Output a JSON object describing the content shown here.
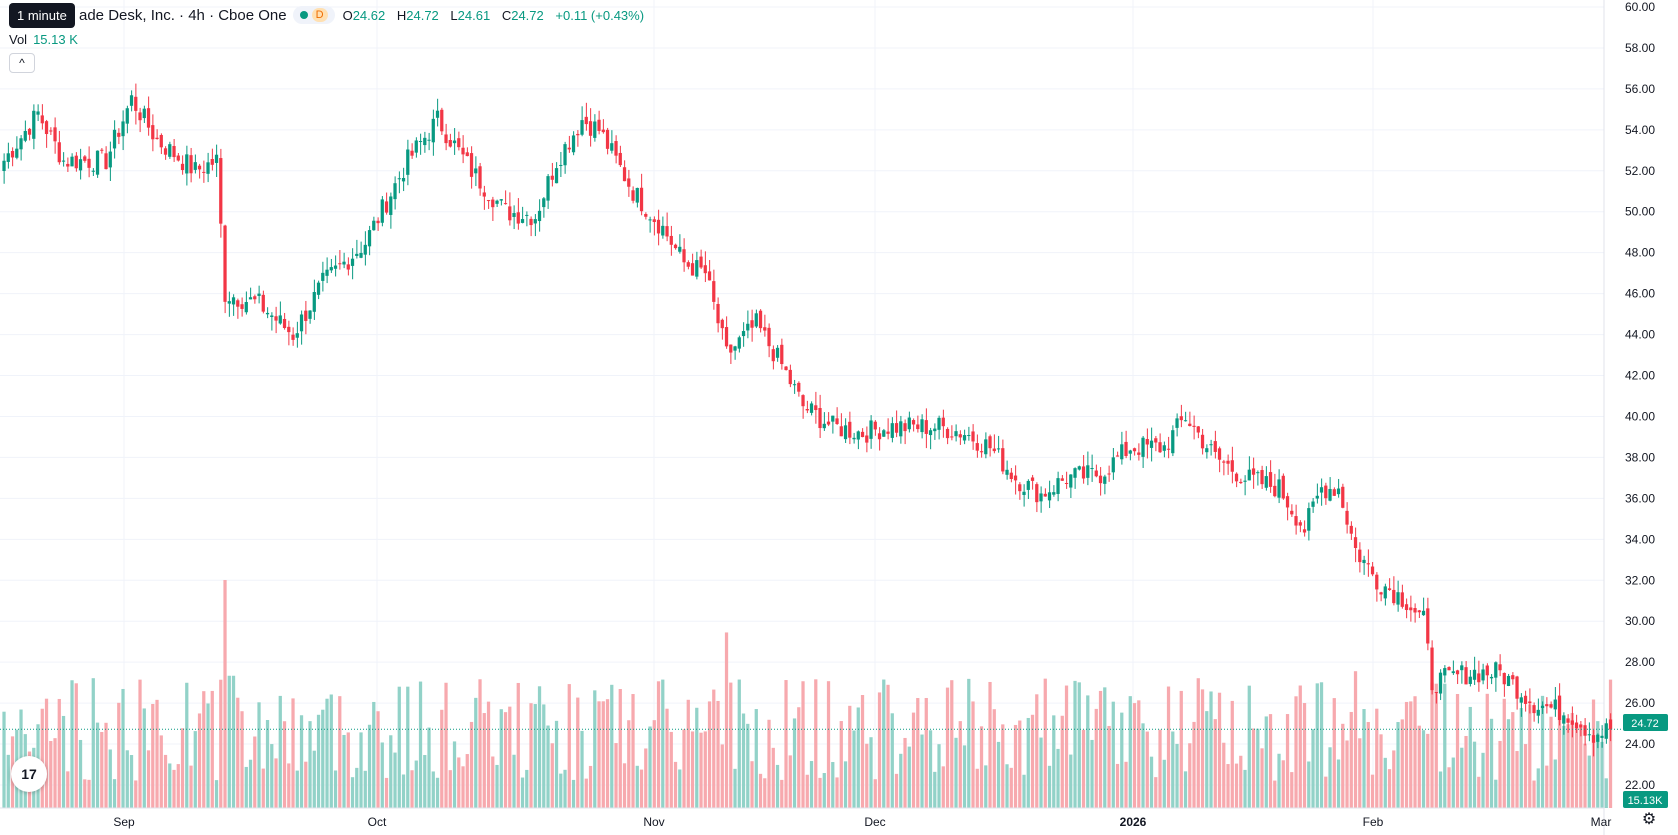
{
  "header": {
    "symbol_title": "ade Desk, Inc. · 4h · Cboe One",
    "interval_badge": "D",
    "ohlc": {
      "o_label": "O",
      "o": "24.62",
      "h_label": "H",
      "h": "24.72",
      "l_label": "L",
      "l": "24.61",
      "c_label": "C",
      "c": "24.72",
      "change": "+0.11 (+0.43%)"
    },
    "tooltip": "1 minute"
  },
  "volume": {
    "label": "Vol",
    "value": "15.13 K"
  },
  "collapse_glyph": "^",
  "logo_text": "17",
  "settings_glyph": "⚙",
  "colors": {
    "up": "#089981",
    "down": "#F23645",
    "up_vol": "#92D2C8",
    "down_vol": "#F7A9AE"
  },
  "chart_data": {
    "type": "candlestick",
    "price_axis": {
      "labels": [
        "60.00",
        "58.00",
        "56.00",
        "54.00",
        "52.00",
        "50.00",
        "48.00",
        "46.00",
        "44.00",
        "42.00",
        "40.00",
        "38.00",
        "36.00",
        "34.00",
        "32.00",
        "30.00",
        "28.00",
        "26.00",
        "24.00",
        "22.00"
      ],
      "ylim": [
        20.5,
        60.2
      ]
    },
    "time_axis": {
      "labels": [
        "Sep",
        "Oct",
        "Nov",
        "Dec",
        "2026",
        "Feb",
        "Mar"
      ]
    },
    "last_price_label": "24.72",
    "last_volume_label": "15.13K",
    "anchors": [
      {
        "x": 0,
        "close": 52.5
      },
      {
        "x": 8,
        "close": 54.8
      },
      {
        "x": 14,
        "close": 52.5
      },
      {
        "x": 24,
        "close": 52.5
      },
      {
        "x": 30,
        "close": 55.5
      },
      {
        "x": 36,
        "close": 53.5
      },
      {
        "x": 45,
        "close": 52.0
      },
      {
        "x": 50,
        "close": 52.5
      },
      {
        "x": 52,
        "close": 46.0
      },
      {
        "x": 60,
        "close": 45.5
      },
      {
        "x": 68,
        "close": 44.0
      },
      {
        "x": 75,
        "close": 46.5
      },
      {
        "x": 85,
        "close": 48.5
      },
      {
        "x": 95,
        "close": 52.5
      },
      {
        "x": 102,
        "close": 54.5
      },
      {
        "x": 110,
        "close": 52.0
      },
      {
        "x": 118,
        "close": 50.0
      },
      {
        "x": 125,
        "close": 49.8
      },
      {
        "x": 130,
        "close": 52.5
      },
      {
        "x": 136,
        "close": 54.5
      },
      {
        "x": 140,
        "close": 54.0
      },
      {
        "x": 148,
        "close": 51.0
      },
      {
        "x": 155,
        "close": 49.2
      },
      {
        "x": 160,
        "close": 47.5
      },
      {
        "x": 165,
        "close": 47.0
      },
      {
        "x": 170,
        "close": 43.0
      },
      {
        "x": 177,
        "close": 44.5
      },
      {
        "x": 183,
        "close": 42.5
      },
      {
        "x": 188,
        "close": 40.5
      },
      {
        "x": 195,
        "close": 39.5
      },
      {
        "x": 202,
        "close": 39.2
      },
      {
        "x": 208,
        "close": 39.5
      },
      {
        "x": 215,
        "close": 39.5
      },
      {
        "x": 220,
        "close": 39.5
      },
      {
        "x": 226,
        "close": 39.2
      },
      {
        "x": 232,
        "close": 38.5
      },
      {
        "x": 238,
        "close": 37.0
      },
      {
        "x": 244,
        "close": 36.2
      },
      {
        "x": 250,
        "close": 37.0
      },
      {
        "x": 258,
        "close": 37.2
      },
      {
        "x": 265,
        "close": 38.5
      },
      {
        "x": 273,
        "close": 38.5
      },
      {
        "x": 278,
        "close": 40.0
      },
      {
        "x": 285,
        "close": 38.0
      },
      {
        "x": 292,
        "close": 37.0
      },
      {
        "x": 300,
        "close": 36.5
      },
      {
        "x": 306,
        "close": 34.5
      },
      {
        "x": 310,
        "close": 36.5
      },
      {
        "x": 314,
        "close": 36.5
      },
      {
        "x": 318,
        "close": 33.5
      },
      {
        "x": 323,
        "close": 32.0
      },
      {
        "x": 330,
        "close": 31.0
      },
      {
        "x": 334,
        "close": 30.0
      },
      {
        "x": 336,
        "close": 27.0
      },
      {
        "x": 345,
        "close": 27.5
      },
      {
        "x": 352,
        "close": 27.5
      },
      {
        "x": 360,
        "close": 26.0
      },
      {
        "x": 368,
        "close": 25.5
      },
      {
        "x": 374,
        "close": 24.5
      },
      {
        "x": 378,
        "close": 24.72
      }
    ],
    "volume_spikes": [
      {
        "x": 52,
        "level": 1.0
      },
      {
        "x": 53,
        "level": 0.58
      },
      {
        "x": 54,
        "level": 0.58
      },
      {
        "x": 170,
        "level": 0.77
      },
      {
        "x": 171,
        "level": 0.55
      },
      {
        "x": 318,
        "level": 0.6
      },
      {
        "x": 336,
        "level": 0.55
      },
      {
        "x": 342,
        "level": 0.5
      }
    ]
  }
}
